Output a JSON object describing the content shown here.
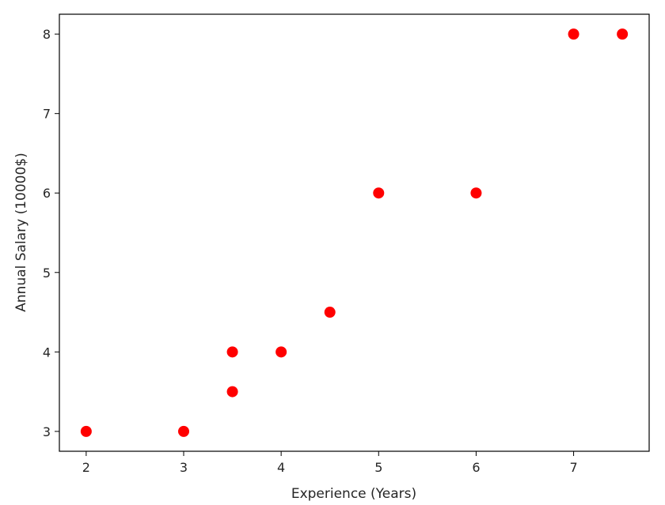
{
  "chart_data": {
    "type": "scatter",
    "xlabel": "Experience (Years)",
    "ylabel": "Annual Salary (10000$)",
    "xlim": [
      1.725,
      7.775
    ],
    "ylim": [
      2.75,
      8.25
    ],
    "x_ticks": [
      2,
      3,
      4,
      5,
      6,
      7
    ],
    "y_ticks": [
      3,
      4,
      5,
      6,
      7,
      8
    ],
    "grid": false,
    "marker_color": "#ff0000",
    "points": [
      {
        "x": 2,
        "y": 3
      },
      {
        "x": 3,
        "y": 3
      },
      {
        "x": 3.5,
        "y": 4
      },
      {
        "x": 3.5,
        "y": 3.5
      },
      {
        "x": 4,
        "y": 4
      },
      {
        "x": 4.5,
        "y": 4.5
      },
      {
        "x": 5,
        "y": 6
      },
      {
        "x": 6,
        "y": 6
      },
      {
        "x": 7,
        "y": 8
      },
      {
        "x": 7.5,
        "y": 8
      }
    ]
  }
}
